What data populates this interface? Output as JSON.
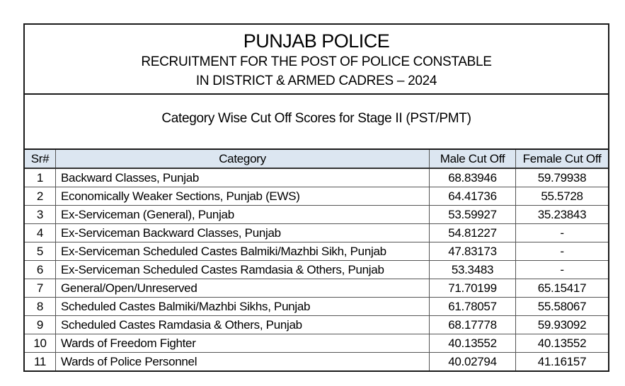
{
  "header": {
    "title": "PUNJAB POLICE",
    "line1": "RECRUITMENT FOR THE POST OF POLICE CONSTABLE",
    "line2": "IN DISTRICT & ARMED CADRES – 2024",
    "subtitle": "Category Wise Cut Off Scores for Stage II (PST/PMT)"
  },
  "table": {
    "columns": [
      "Sr#",
      "Category",
      "Male Cut Off",
      "Female Cut Off"
    ],
    "rows": [
      {
        "sr": "1",
        "category": "Backward Classes, Punjab",
        "male": "68.83946",
        "female": "59.79938"
      },
      {
        "sr": "2",
        "category": "Economically Weaker Sections, Punjab (EWS)",
        "male": "64.41736",
        "female": "55.5728"
      },
      {
        "sr": "3",
        "category": "Ex-Serviceman (General), Punjab",
        "male": "53.59927",
        "female": "35.23843"
      },
      {
        "sr": "4",
        "category": "Ex-Serviceman Backward Classes, Punjab",
        "male": "54.81227",
        "female": "-"
      },
      {
        "sr": "5",
        "category": "Ex-Serviceman Scheduled Castes Balmiki/Mazhbi Sikh, Punjab",
        "male": "47.83173",
        "female": "-"
      },
      {
        "sr": "6",
        "category": "Ex-Serviceman Scheduled Castes Ramdasia & Others, Punjab",
        "male": "53.3483",
        "female": "-"
      },
      {
        "sr": "7",
        "category": "General/Open/Unreserved",
        "male": "71.70199",
        "female": "65.15417"
      },
      {
        "sr": "8",
        "category": "Scheduled Castes Balmiki/Mazhbi Sikhs, Punjab",
        "male": "61.78057",
        "female": "55.58067"
      },
      {
        "sr": "9",
        "category": "Scheduled Castes Ramdasia & Others, Punjab",
        "male": "68.17778",
        "female": "59.93092"
      },
      {
        "sr": "10",
        "category": "Wards of Freedom Fighter",
        "male": "40.13552",
        "female": "40.13552"
      },
      {
        "sr": "11",
        "category": "Wards of Police Personnel",
        "male": "40.02794",
        "female": "41.16157"
      }
    ]
  }
}
